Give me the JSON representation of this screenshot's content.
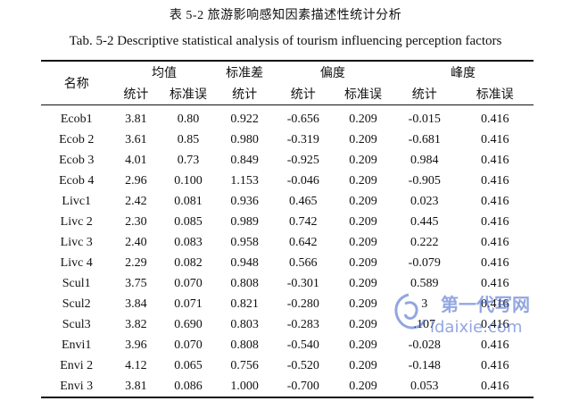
{
  "caption": {
    "cn": "表 5-2  旅游影响感知因素描述性统计分析",
    "en": "Tab. 5-2 Descriptive statistical analysis of tourism influencing perception factors"
  },
  "header": {
    "name": "名称",
    "mean": "均值",
    "sd": "标准差",
    "skewness": "偏度",
    "kurtosis": "峰度",
    "stat": "统计",
    "se": "标准误"
  },
  "rows": [
    {
      "name": "Ecob1",
      "mean": "3.81",
      "mean_se": "0.80",
      "sd": "0.922",
      "skew": "-0.656",
      "skew_se": "0.209",
      "kurt": "-0.015",
      "kurt_se": "0.416"
    },
    {
      "name": "Ecob 2",
      "mean": "3.61",
      "mean_se": "0.85",
      "sd": "0.980",
      "skew": "-0.319",
      "skew_se": "0.209",
      "kurt": "-0.681",
      "kurt_se": "0.416"
    },
    {
      "name": "Ecob 3",
      "mean": "4.01",
      "mean_se": "0.73",
      "sd": "0.849",
      "skew": "-0.925",
      "skew_se": "0.209",
      "kurt": "0.984",
      "kurt_se": "0.416"
    },
    {
      "name": "Ecob 4",
      "mean": "2.96",
      "mean_se": "0.100",
      "sd": "1.153",
      "skew": "-0.046",
      "skew_se": "0.209",
      "kurt": "-0.905",
      "kurt_se": "0.416"
    },
    {
      "name": "Livc1",
      "mean": "2.42",
      "mean_se": "0.081",
      "sd": "0.936",
      "skew": "0.465",
      "skew_se": "0.209",
      "kurt": "0.023",
      "kurt_se": "0.416"
    },
    {
      "name": "Livc 2",
      "mean": "2.30",
      "mean_se": "0.085",
      "sd": "0.989",
      "skew": "0.742",
      "skew_se": "0.209",
      "kurt": "0.445",
      "kurt_se": "0.416"
    },
    {
      "name": "Livc 3",
      "mean": "2.40",
      "mean_se": "0.083",
      "sd": "0.958",
      "skew": "0.642",
      "skew_se": "0.209",
      "kurt": "0.222",
      "kurt_se": "0.416"
    },
    {
      "name": "Livc 4",
      "mean": "2.29",
      "mean_se": "0.082",
      "sd": "0.948",
      "skew": "0.566",
      "skew_se": "0.209",
      "kurt": "-0.079",
      "kurt_se": "0.416"
    },
    {
      "name": "Scul1",
      "mean": "3.75",
      "mean_se": "0.070",
      "sd": "0.808",
      "skew": "-0.301",
      "skew_se": "0.209",
      "kurt": "0.589",
      "kurt_se": "0.416"
    },
    {
      "name": "Scul2",
      "mean": "3.84",
      "mean_se": "0.071",
      "sd": "0.821",
      "skew": "-0.280",
      "skew_se": "0.209",
      "kurt": "3",
      "kurt_se": "0.416"
    },
    {
      "name": "Scul3",
      "mean": "3.82",
      "mean_se": "0.690",
      "sd": "0.803",
      "skew": "-0.283",
      "skew_se": "0.209",
      "kurt": ".107",
      "kurt_se": "0.416"
    },
    {
      "name": "Envi1",
      "mean": "3.96",
      "mean_se": "0.070",
      "sd": "0.808",
      "skew": "-0.540",
      "skew_se": "0.209",
      "kurt": "-0.028",
      "kurt_se": "0.416"
    },
    {
      "name": "Envi 2",
      "mean": "4.12",
      "mean_se": "0.065",
      "sd": "0.756",
      "skew": "-0.520",
      "skew_se": "0.209",
      "kurt": "-0.148",
      "kurt_se": "0.416"
    },
    {
      "name": "Envi 3",
      "mean": "3.81",
      "mean_se": "0.086",
      "sd": "1.000",
      "skew": "-0.700",
      "skew_se": "0.209",
      "kurt": "0.053",
      "kurt_se": "0.416"
    }
  ],
  "watermark": {
    "line1": "第一代写网",
    "line2": "ldaixie.com",
    "color": "#3a5fc8"
  }
}
